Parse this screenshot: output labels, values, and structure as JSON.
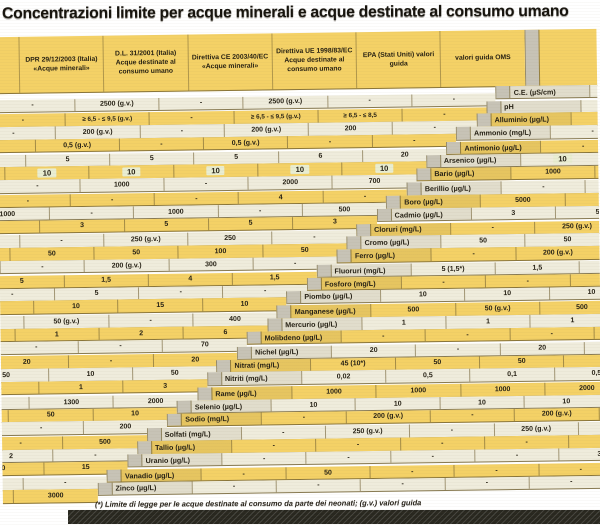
{
  "title": "Concentrazioni limite per acque minerali e acque destinate al consumo umano",
  "footnote": "(*) Limite di legge per le acque destinate al consumo da parte dei neonati; (g.v.) valori guida",
  "header": {
    "columns": [
      "DPR 29/12/2003 (Italia) «Acque minerali»",
      "D.L. 31/2001 (Italia) Acque destinate al consumo umano",
      "Direttiva CE 2003/40/EC «Acque minerali»",
      "Direttiva UE 1998/83/EC Acque destinate al consumo umano",
      "EPA (Stati Uniti) valori guida",
      "valori guida OMS"
    ]
  },
  "rows": [
    {
      "label": "C.E. (µS/cm)",
      "values": [
        "-",
        "2500 (g.v.)",
        "-",
        "2500 (g.v.)",
        "-",
        "-"
      ]
    },
    {
      "label": "pH",
      "values": [
        "-",
        "≥ 6,5 - ≤ 9,5 (g.v.)",
        "-",
        "≥ 6,5 - ≤ 9,5 (g.v.)",
        "≥ 6,5 - ≤ 8,5",
        "-"
      ]
    },
    {
      "label": "Alluminio (µg/L)",
      "values": [
        "-",
        "200 (g.v.)",
        "-",
        "200 (g.v.)",
        "200",
        "-"
      ]
    },
    {
      "label": "Ammonio (mg/L)",
      "values": [
        "-",
        "0,5 (g.v.)",
        "-",
        "0,5 (g.v.)",
        "-",
        "-"
      ]
    },
    {
      "label": "Antimonio (µg/L)",
      "values": [
        "-",
        "5",
        "5",
        "5",
        "6",
        "20"
      ]
    },
    {
      "label": "Arsenico (µg/L)",
      "values": [
        "10",
        "10",
        "10",
        "10",
        "10",
        "10"
      ],
      "highlight": true
    },
    {
      "label": "Bario (µg/L)",
      "values": [
        "1000",
        "-",
        "1000",
        "-",
        "2000",
        "700"
      ]
    },
    {
      "label": "Berillio (µg/L)",
      "values": [
        "-",
        "-",
        "-",
        "-",
        "4",
        "-"
      ]
    },
    {
      "label": "Boro (µg/L)",
      "values": [
        "5000",
        "1000",
        "-",
        "1000",
        "-",
        "500"
      ]
    },
    {
      "label": "Cadmio (µg/L)",
      "values": [
        "3",
        "5",
        "3",
        "5",
        "5",
        "3"
      ]
    },
    {
      "label": "Cloruri (mg/L)",
      "values": [
        "-",
        "250 (g.v.)",
        "-",
        "250 (g.v.)",
        "250",
        "-"
      ]
    },
    {
      "label": "Cromo (µg/L)",
      "values": [
        "50",
        "50",
        "50",
        "50",
        "100",
        "50"
      ]
    },
    {
      "label": "Ferro (µg/L)",
      "values": [
        "-",
        "200 (g.v.)",
        "-",
        "200 (g.v.)",
        "300",
        "-"
      ]
    },
    {
      "label": "Fluoruri (mg/L)",
      "values": [
        "5 (1,5*)",
        "1,5",
        "5",
        "1,5",
        "4",
        "1,5"
      ]
    },
    {
      "label": "Fosforo (mg/L)",
      "values": [
        "-",
        "-",
        "-",
        "5",
        "-",
        "-"
      ]
    },
    {
      "label": "Piombo (µg/L)",
      "values": [
        "10",
        "10",
        "10",
        "10",
        "15",
        "10"
      ]
    },
    {
      "label": "Manganese (µg/L)",
      "values": [
        "500",
        "50 (g.v.)",
        "500",
        "50 (g.v.)",
        "-",
        "400"
      ]
    },
    {
      "label": "Mercurio (µg/L)",
      "values": [
        "1",
        "1",
        "1",
        "1",
        "2",
        "6"
      ]
    },
    {
      "label": "Molibdeno (µg/L)",
      "values": [
        "-",
        "-",
        "-",
        "-",
        "-",
        "70"
      ]
    },
    {
      "label": "Nichel (µg/L)",
      "values": [
        "20",
        "-",
        "20",
        "20",
        "-",
        "20"
      ]
    },
    {
      "label": "Nitrati (mg/L)",
      "values": [
        "45 (10*)",
        "50",
        "50",
        "50",
        "10",
        "50"
      ]
    },
    {
      "label": "Nitriti (mg/L)",
      "values": [
        "0,02",
        "0,5",
        "0,1",
        "0,5",
        "1",
        "3"
      ]
    },
    {
      "label": "Rame (µg/L)",
      "values": [
        "1000",
        "1000",
        "1000",
        "2000",
        "1300",
        "2000"
      ]
    },
    {
      "label": "Selenio (µg/L)",
      "values": [
        "10",
        "10",
        "10",
        "10",
        "50",
        "10"
      ]
    },
    {
      "label": "Sodio (mg/L)",
      "values": [
        "-",
        "200 (g.v.)",
        "-",
        "200 (g.v.)",
        "-",
        "200"
      ]
    },
    {
      "label": "Solfati (mg/L)",
      "values": [
        "-",
        "250 (g.v.)",
        "-",
        "250 (g.v.)",
        "-",
        "500"
      ]
    },
    {
      "label": "Tallio (µg/L)",
      "values": [
        "-",
        "-",
        "-",
        "-",
        "2",
        "-"
      ]
    },
    {
      "label": "Uranio (µg/L)",
      "values": [
        "-",
        "-",
        "-",
        "-",
        "30",
        "15"
      ]
    },
    {
      "label": "Vanadio (µg/L)",
      "values": [
        "-",
        "50",
        "-",
        "-",
        "-",
        "-"
      ]
    },
    {
      "label": "Zinco (µg/L)",
      "values": [
        "-",
        "-",
        "-",
        "-",
        "-",
        "3000"
      ]
    }
  ],
  "colors": {
    "band_yellow": "#F4D166",
    "band_cream": "#EFECDC",
    "margin_gray": "#C7C3B6",
    "border": "#7E6F45",
    "text": "#262115",
    "highlight": "#E9EDD2",
    "black_bar": "#28271F"
  }
}
